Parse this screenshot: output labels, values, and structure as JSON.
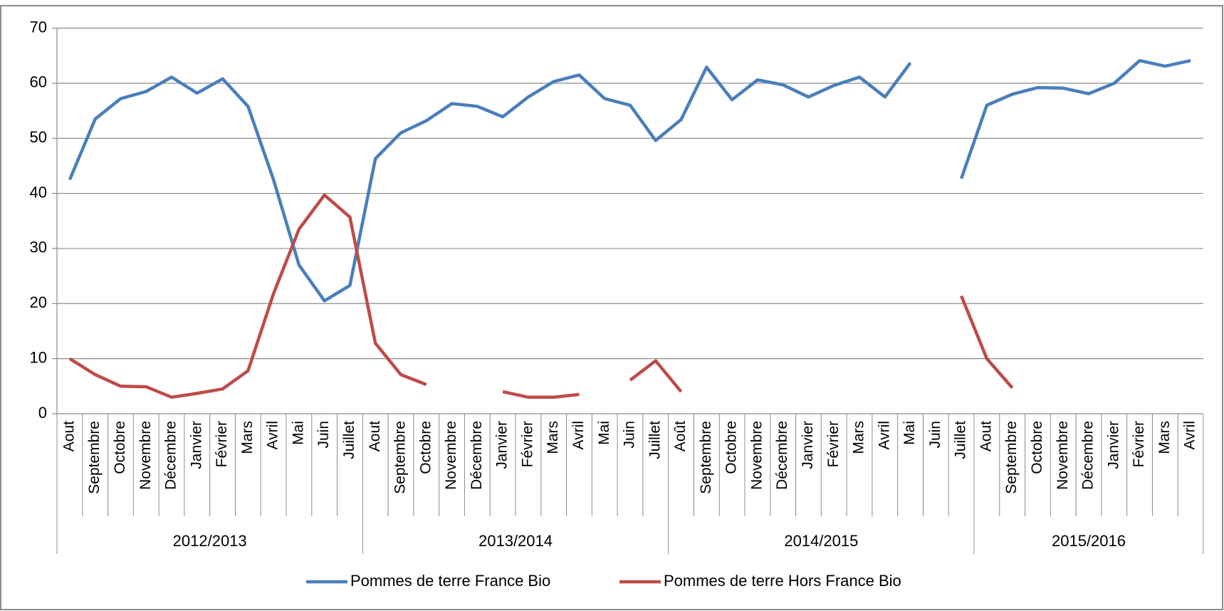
{
  "chart_data": {
    "type": "line",
    "groups": [
      {
        "label": "2012/2013",
        "categories": [
          "Aout",
          "Septembre",
          "Octobre",
          "Novembre",
          "Décembre",
          "Janvier",
          "Février",
          "Mars",
          "Avril",
          "Mai",
          "Juin",
          "Juillet"
        ]
      },
      {
        "label": "2013/2014",
        "categories": [
          "Aout",
          "Septembre",
          "Octobre",
          "Novembre",
          "Décembre",
          "Janvier",
          "Février",
          "Mars",
          "Avril",
          "Mai",
          "Juin",
          "Juillet"
        ]
      },
      {
        "label": "2014/2015",
        "categories": [
          "Août",
          "Septembre",
          "Octobre",
          "Novembre",
          "Décembre",
          "Janvier",
          "Février",
          "Mars",
          "Avril",
          "Mai",
          "Juin",
          "Juillet"
        ]
      },
      {
        "label": "2015/2016",
        "categories": [
          "Aout",
          "Septembre",
          "Octobre",
          "Novembre",
          "Décembre",
          "Janvier",
          "Février",
          "Mars",
          "Avril"
        ]
      }
    ],
    "series": [
      {
        "name": "Pommes de terre France Bio",
        "color": "#4a7ebb",
        "values": [
          42.5,
          53.5,
          57.2,
          58.5,
          61.1,
          58.2,
          60.8,
          55.8,
          42.5,
          27.0,
          20.5,
          23.3,
          46.3,
          51.0,
          53.2,
          56.3,
          55.8,
          53.9,
          57.5,
          60.3,
          61.5,
          57.2,
          56.0,
          49.6,
          53.4,
          62.9,
          57.0,
          60.6,
          59.7,
          57.5,
          59.6,
          61.1,
          57.5,
          63.7,
          null,
          42.7,
          56.0,
          58.0,
          59.2,
          59.1,
          58.1,
          60.0,
          64.1,
          63.1,
          64.1
        ]
      },
      {
        "name": "Pommes de terre Hors France Bio",
        "color": "#be4b48",
        "values": [
          10.0,
          7.1,
          5.0,
          4.9,
          3.0,
          3.7,
          4.5,
          7.8,
          21.8,
          33.5,
          39.7,
          35.7,
          12.8,
          7.1,
          5.3,
          null,
          null,
          4.0,
          3.0,
          3.0,
          3.5,
          null,
          6.1,
          9.6,
          4.0,
          null,
          null,
          null,
          null,
          null,
          null,
          null,
          null,
          null,
          null,
          21.4,
          10.0,
          4.7,
          null,
          null,
          null,
          null,
          null,
          null,
          null
        ]
      }
    ],
    "ylim": [
      0,
      70
    ],
    "yticks": [
      0,
      10,
      20,
      30,
      40,
      50,
      60,
      70
    ],
    "grid": true,
    "legend": "bottom"
  }
}
